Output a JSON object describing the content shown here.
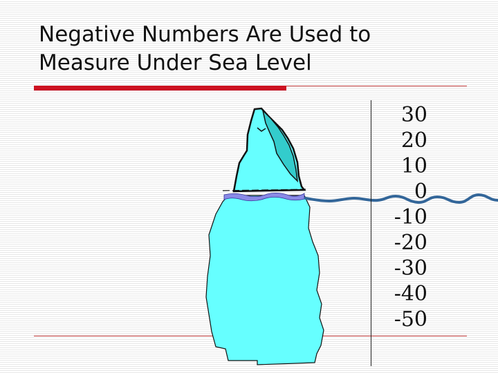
{
  "title": {
    "line1": "Negative Numbers Are Used to",
    "line2": "Measure Under Sea Level"
  },
  "scale": {
    "labels": [
      "30",
      "20",
      "10",
      "0",
      "-10",
      "-20",
      "-30",
      "-40",
      "-50"
    ]
  },
  "colors": {
    "accent_bar": "#cc1122",
    "ice": "#66ffff",
    "ice_peak": "#33cccc",
    "water": "#336699"
  }
}
